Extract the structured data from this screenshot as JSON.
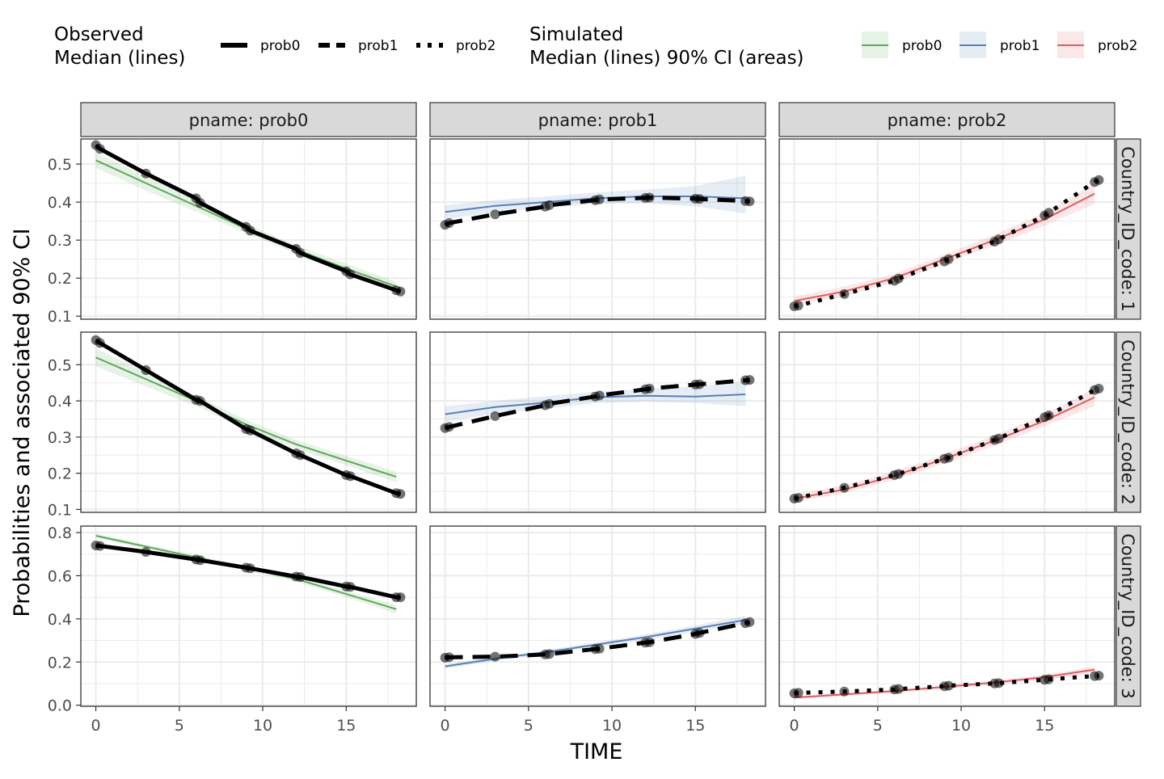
{
  "legend": {
    "observed": {
      "title_line1": "Observed",
      "title_line2": "Median (lines)",
      "items": [
        "prob0",
        "prob1",
        "prob2"
      ]
    },
    "simulated": {
      "title_line1": "Simulated",
      "title_line2": "Median (lines) 90% CI (areas)",
      "items": [
        "prob0",
        "prob1",
        "prob2"
      ]
    }
  },
  "colors": {
    "prob0": "#5fa85a",
    "prob1": "#5680b8",
    "prob2": "#e05c60",
    "observed": "#000000",
    "strip_bg": "#d9d9d9",
    "grid": "#ebebeb"
  },
  "chart_data": {
    "type": "line",
    "xlabel": "TIME",
    "ylabel": "Probabilities and associated 90% CI",
    "col_strips": [
      "pname: prob0",
      "pname: prob1",
      "pname: prob2"
    ],
    "row_strips": [
      "Country_ID_code: 1",
      "Country_ID_code: 2",
      "Country_ID_code: 3"
    ],
    "x_range": [
      -0.9,
      19.2
    ],
    "x_ticks": [
      0,
      5,
      10,
      15
    ],
    "x_tick_labels": [
      "0",
      "5",
      "10",
      "15"
    ],
    "observed_times": [
      0,
      0.25,
      3,
      6,
      6.25,
      9,
      9.25,
      12,
      12.25,
      15,
      15.25,
      18,
      18.25
    ],
    "rows": [
      {
        "y_range": [
          0.092,
          0.566
        ],
        "y_ticks": [
          0.1,
          0.2,
          0.3,
          0.4,
          0.5
        ],
        "y_tick_labels": [
          "0.1",
          "0.2",
          "0.3",
          "0.4",
          "0.5"
        ],
        "panels": [
          {
            "pname": "prob0",
            "observed": [
              0.55,
              0.54,
              0.475,
              0.41,
              0.398,
              0.335,
              0.325,
              0.277,
              0.266,
              0.218,
              0.21,
              0.168,
              0.165
            ],
            "sim_x": [
              0,
              3,
              6,
              9,
              12,
              15,
              18
            ],
            "sim_median": [
              0.51,
              0.45,
              0.39,
              0.33,
              0.275,
              0.225,
              0.178
            ],
            "sim_lower": [
              0.49,
              0.43,
              0.375,
              0.318,
              0.265,
              0.213,
              0.162
            ],
            "sim_upper": [
              0.53,
              0.468,
              0.405,
              0.342,
              0.287,
              0.238,
              0.19
            ]
          },
          {
            "pname": "prob1",
            "observed": [
              0.34,
              0.345,
              0.368,
              0.388,
              0.392,
              0.405,
              0.407,
              0.411,
              0.412,
              0.409,
              0.408,
              0.403,
              0.402
            ],
            "sim_x": [
              0,
              3,
              6,
              9,
              12,
              15,
              18
            ],
            "sim_median": [
              0.374,
              0.39,
              0.4,
              0.41,
              0.415,
              0.415,
              0.41
            ],
            "sim_lower": [
              0.355,
              0.373,
              0.385,
              0.395,
              0.397,
              0.389,
              0.37
            ],
            "sim_upper": [
              0.392,
              0.405,
              0.415,
              0.425,
              0.433,
              0.442,
              0.47
            ]
          },
          {
            "pname": "prob2",
            "observed": [
              0.126,
              0.128,
              0.158,
              0.193,
              0.199,
              0.244,
              0.25,
              0.296,
              0.302,
              0.365,
              0.372,
              0.453,
              0.458
            ],
            "sim_x": [
              0,
              3,
              6,
              9,
              12,
              15,
              18
            ],
            "sim_median": [
              0.14,
              0.165,
              0.2,
              0.25,
              0.3,
              0.355,
              0.422
            ],
            "sim_lower": [
              0.128,
              0.153,
              0.188,
              0.238,
              0.285,
              0.338,
              0.395
            ],
            "sim_upper": [
              0.152,
              0.178,
              0.212,
              0.262,
              0.315,
              0.372,
              0.45
            ]
          }
        ]
      },
      {
        "y_range": [
          0.092,
          0.59
        ],
        "y_ticks": [
          0.1,
          0.2,
          0.3,
          0.4,
          0.5
        ],
        "y_tick_labels": [
          "0.1",
          "0.2",
          "0.3",
          "0.4",
          "0.5"
        ],
        "panels": [
          {
            "pname": "prob0",
            "observed": [
              0.568,
              0.56,
              0.485,
              0.403,
              0.4,
              0.322,
              0.318,
              0.255,
              0.25,
              0.195,
              0.192,
              0.145,
              0.143
            ],
            "sim_x": [
              0,
              3,
              6,
              9,
              12,
              15,
              18
            ],
            "sim_median": [
              0.52,
              0.46,
              0.4,
              0.335,
              0.28,
              0.235,
              0.19
            ],
            "sim_lower": [
              0.495,
              0.44,
              0.385,
              0.322,
              0.268,
              0.222,
              0.175
            ],
            "sim_upper": [
              0.545,
              0.48,
              0.415,
              0.348,
              0.292,
              0.248,
              0.205
            ]
          },
          {
            "pname": "prob1",
            "observed": [
              0.325,
              0.328,
              0.358,
              0.388,
              0.392,
              0.412,
              0.415,
              0.432,
              0.434,
              0.445,
              0.446,
              0.457,
              0.458
            ],
            "sim_x": [
              0,
              3,
              6,
              9,
              12,
              15,
              18
            ],
            "sim_median": [
              0.363,
              0.383,
              0.395,
              0.41,
              0.414,
              0.412,
              0.418
            ],
            "sim_lower": [
              0.342,
              0.365,
              0.378,
              0.394,
              0.398,
              0.394,
              0.385
            ],
            "sim_upper": [
              0.385,
              0.4,
              0.413,
              0.425,
              0.433,
              0.44,
              0.455
            ]
          },
          {
            "pname": "prob2",
            "observed": [
              0.13,
              0.132,
              0.16,
              0.195,
              0.198,
              0.24,
              0.243,
              0.292,
              0.296,
              0.355,
              0.36,
              0.43,
              0.434
            ],
            "sim_x": [
              0,
              3,
              6,
              9,
              12,
              15,
              18
            ],
            "sim_median": [
              0.13,
              0.155,
              0.193,
              0.24,
              0.29,
              0.345,
              0.41
            ],
            "sim_lower": [
              0.12,
              0.145,
              0.182,
              0.228,
              0.276,
              0.33,
              0.385
            ],
            "sim_upper": [
              0.142,
              0.167,
              0.205,
              0.253,
              0.305,
              0.362,
              0.435
            ]
          }
        ]
      },
      {
        "y_range": [
          -0.005,
          0.83
        ],
        "y_ticks": [
          0.0,
          0.2,
          0.4,
          0.6,
          0.8
        ],
        "y_tick_labels": [
          "0.0",
          "0.2",
          "0.4",
          "0.6",
          "0.8"
        ],
        "panels": [
          {
            "pname": "prob0",
            "observed": [
              0.74,
              0.738,
              0.71,
              0.675,
              0.672,
              0.637,
              0.634,
              0.596,
              0.594,
              0.55,
              0.548,
              0.5,
              0.5
            ],
            "sim_x": [
              0,
              3,
              6,
              9,
              12,
              15,
              18
            ],
            "sim_median": [
              0.785,
              0.735,
              0.685,
              0.635,
              0.585,
              0.515,
              0.445
            ],
            "sim_lower": [
              0.775,
              0.725,
              0.675,
              0.625,
              0.573,
              0.5,
              0.425
            ],
            "sim_upper": [
              0.795,
              0.745,
              0.695,
              0.645,
              0.597,
              0.53,
              0.465
            ]
          },
          {
            "pname": "prob1",
            "observed": [
              0.22,
              0.222,
              0.225,
              0.235,
              0.237,
              0.26,
              0.262,
              0.29,
              0.292,
              0.33,
              0.335,
              0.38,
              0.385
            ],
            "sim_x": [
              0,
              3,
              6,
              9,
              12,
              15,
              18
            ],
            "sim_median": [
              0.18,
              0.215,
              0.245,
              0.28,
              0.315,
              0.355,
              0.395
            ],
            "sim_lower": [
              0.17,
              0.205,
              0.235,
              0.27,
              0.303,
              0.34,
              0.375
            ],
            "sim_upper": [
              0.19,
              0.225,
              0.255,
              0.29,
              0.327,
              0.37,
              0.415
            ]
          },
          {
            "pname": "prob2",
            "observed": [
              0.055,
              0.057,
              0.063,
              0.073,
              0.075,
              0.088,
              0.09,
              0.101,
              0.102,
              0.118,
              0.12,
              0.135,
              0.137
            ],
            "sim_x": [
              0,
              3,
              6,
              9,
              12,
              15,
              18
            ],
            "sim_median": [
              0.035,
              0.05,
              0.065,
              0.085,
              0.105,
              0.13,
              0.165
            ],
            "sim_lower": [
              0.028,
              0.042,
              0.057,
              0.076,
              0.095,
              0.118,
              0.15
            ],
            "sim_upper": [
              0.042,
              0.058,
              0.073,
              0.094,
              0.115,
              0.142,
              0.18
            ]
          }
        ]
      }
    ]
  }
}
